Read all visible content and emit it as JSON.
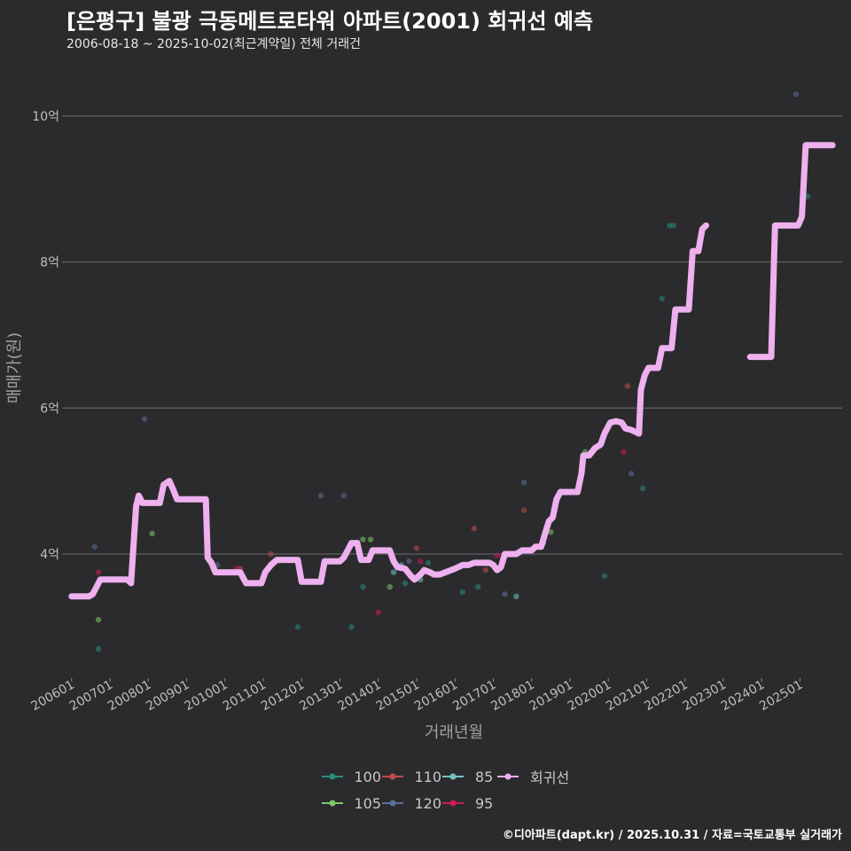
{
  "header": {
    "title": "[은평구] 불광 극동메트로타워 아파트(2001) 회귀선 예측",
    "subtitle": "2006-08-18 ~ 2025-10-02(최근계약일) 전체 거래건"
  },
  "footer": {
    "credit": "©디아파트(dapt.kr) / 2025.10.31 / 자료=국토교통부 실거래가"
  },
  "chart_data": {
    "type": "scatter",
    "title": "[은평구] 불광 극동메트로타워 아파트(2001) 회귀선 예측",
    "xlabel": "거래년월",
    "ylabel": "매매가(원)",
    "x_ticks": [
      "200601",
      "200701",
      "200801",
      "200901",
      "201001",
      "201101",
      "201201",
      "201301",
      "201401",
      "201501",
      "201601",
      "201701",
      "201801",
      "201901",
      "202001",
      "202101",
      "202201",
      "202301",
      "202401",
      "202501"
    ],
    "y_ticks": [
      {
        "value": 4,
        "label": "4억"
      },
      {
        "value": 6,
        "label": "6억"
      },
      {
        "value": 8,
        "label": "8억"
      },
      {
        "value": 10,
        "label": "10억"
      }
    ],
    "xlim": [
      2005.75,
      2026.1
    ],
    "ylim": [
      2.3,
      10.8
    ],
    "grid": true,
    "legend_position": "bottom",
    "colors": {
      "100": "#2a8d7e",
      "105": "#7ec96c",
      "110": "#c04c4c",
      "120": "#5b6f99",
      "85": "#72c4c4",
      "95": "#cc1a57",
      "회귀선": "#eeb0ee"
    },
    "legend": [
      "100",
      "105",
      "110",
      "120",
      "85",
      "95",
      "회귀선"
    ],
    "series": [
      {
        "name": "100",
        "points": [
          [
            2006.7,
            2.7
          ],
          [
            2011.9,
            3.0
          ],
          [
            2013.3,
            3.0
          ],
          [
            2013.6,
            3.55
          ],
          [
            2014.7,
            3.6
          ],
          [
            2015.3,
            3.88
          ],
          [
            2016.2,
            3.48
          ],
          [
            2016.6,
            3.55
          ],
          [
            2019.9,
            3.7
          ],
          [
            2020.9,
            4.9
          ],
          [
            2021.4,
            7.5
          ],
          [
            2021.6,
            8.5
          ],
          [
            2021.7,
            8.5
          ],
          [
            2025.2,
            8.9
          ]
        ]
      },
      {
        "name": "105",
        "points": [
          [
            2006.7,
            3.1
          ],
          [
            2008.1,
            4.28
          ],
          [
            2013.6,
            4.2
          ],
          [
            2013.8,
            4.2
          ],
          [
            2014.3,
            3.55
          ],
          [
            2018.5,
            4.3
          ],
          [
            2019.4,
            5.4
          ]
        ]
      },
      {
        "name": "110",
        "points": [
          [
            2010.4,
            3.8
          ],
          [
            2011.2,
            4.0
          ],
          [
            2015.0,
            4.08
          ],
          [
            2016.5,
            4.35
          ],
          [
            2016.8,
            3.78
          ],
          [
            2017.8,
            4.6
          ],
          [
            2020.5,
            6.3
          ]
        ]
      },
      {
        "name": "120",
        "points": [
          [
            2006.6,
            4.1
          ],
          [
            2007.9,
            5.85
          ],
          [
            2009.8,
            3.85
          ],
          [
            2012.5,
            4.8
          ],
          [
            2013.1,
            4.8
          ],
          [
            2014.8,
            3.9
          ],
          [
            2017.3,
            3.45
          ],
          [
            2017.8,
            4.98
          ],
          [
            2020.6,
            5.1
          ],
          [
            2024.9,
            10.3
          ]
        ]
      },
      {
        "name": "85",
        "points": [
          [
            2014.4,
            3.75
          ],
          [
            2014.6,
            3.85
          ],
          [
            2015.1,
            3.65
          ],
          [
            2017.6,
            3.42
          ],
          [
            2018.3,
            4.15
          ]
        ]
      },
      {
        "name": "95",
        "points": [
          [
            2006.7,
            3.75
          ],
          [
            2010.3,
            3.8
          ],
          [
            2014.0,
            3.2
          ],
          [
            2015.1,
            3.9
          ],
          [
            2017.1,
            3.98
          ],
          [
            2020.4,
            5.4
          ]
        ]
      }
    ],
    "regression": {
      "name": "회귀선",
      "segments": [
        [
          [
            2006.0,
            3.42
          ],
          [
            2006.45,
            3.42
          ],
          [
            2006.55,
            3.45
          ],
          [
            2006.65,
            3.55
          ],
          [
            2006.75,
            3.65
          ],
          [
            2007.45,
            3.65
          ],
          [
            2007.55,
            3.6
          ],
          [
            2007.68,
            4.65
          ],
          [
            2007.75,
            4.8
          ],
          [
            2007.85,
            4.7
          ],
          [
            2008.3,
            4.7
          ],
          [
            2008.4,
            4.95
          ],
          [
            2008.55,
            5.0
          ],
          [
            2008.65,
            4.88
          ],
          [
            2008.75,
            4.75
          ],
          [
            2009.5,
            4.75
          ],
          [
            2009.55,
            3.95
          ],
          [
            2009.65,
            3.88
          ],
          [
            2009.75,
            3.75
          ],
          [
            2010.4,
            3.75
          ],
          [
            2010.45,
            3.7
          ],
          [
            2010.55,
            3.6
          ],
          [
            2010.95,
            3.6
          ],
          [
            2011.05,
            3.75
          ],
          [
            2011.2,
            3.85
          ],
          [
            2011.35,
            3.92
          ],
          [
            2011.9,
            3.92
          ],
          [
            2012.0,
            3.62
          ],
          [
            2012.5,
            3.62
          ],
          [
            2012.6,
            3.9
          ],
          [
            2013.0,
            3.9
          ],
          [
            2013.1,
            3.95
          ],
          [
            2013.2,
            4.05
          ],
          [
            2013.3,
            4.15
          ],
          [
            2013.45,
            4.15
          ],
          [
            2013.55,
            3.92
          ],
          [
            2013.75,
            3.92
          ],
          [
            2013.85,
            4.05
          ],
          [
            2014.3,
            4.05
          ],
          [
            2014.4,
            3.9
          ],
          [
            2014.5,
            3.82
          ],
          [
            2014.7,
            3.8
          ],
          [
            2014.85,
            3.7
          ],
          [
            2014.95,
            3.65
          ],
          [
            2015.1,
            3.72
          ],
          [
            2015.2,
            3.78
          ],
          [
            2015.35,
            3.75
          ],
          [
            2015.45,
            3.72
          ],
          [
            2015.6,
            3.72
          ],
          [
            2015.75,
            3.75
          ],
          [
            2016.0,
            3.8
          ],
          [
            2016.2,
            3.85
          ],
          [
            2016.35,
            3.85
          ],
          [
            2016.5,
            3.88
          ],
          [
            2016.9,
            3.88
          ],
          [
            2017.0,
            3.85
          ],
          [
            2017.1,
            3.78
          ],
          [
            2017.2,
            3.82
          ],
          [
            2017.3,
            4.0
          ],
          [
            2017.6,
            4.0
          ],
          [
            2017.75,
            4.05
          ],
          [
            2018.0,
            4.05
          ],
          [
            2018.1,
            4.1
          ],
          [
            2018.25,
            4.1
          ],
          [
            2018.35,
            4.28
          ],
          [
            2018.45,
            4.45
          ],
          [
            2018.55,
            4.5
          ],
          [
            2018.65,
            4.75
          ],
          [
            2018.75,
            4.85
          ],
          [
            2019.2,
            4.85
          ],
          [
            2019.3,
            5.1
          ],
          [
            2019.35,
            5.35
          ],
          [
            2019.5,
            5.35
          ],
          [
            2019.65,
            5.45
          ],
          [
            2019.8,
            5.5
          ],
          [
            2019.9,
            5.65
          ],
          [
            2020.05,
            5.8
          ],
          [
            2020.2,
            5.82
          ],
          [
            2020.35,
            5.8
          ],
          [
            2020.45,
            5.72
          ],
          [
            2020.6,
            5.7
          ],
          [
            2020.8,
            5.65
          ],
          [
            2020.85,
            6.25
          ],
          [
            2020.95,
            6.45
          ],
          [
            2021.05,
            6.55
          ],
          [
            2021.3,
            6.55
          ],
          [
            2021.4,
            6.82
          ],
          [
            2021.65,
            6.82
          ],
          [
            2021.75,
            7.35
          ],
          [
            2022.1,
            7.35
          ],
          [
            2022.2,
            8.15
          ],
          [
            2022.35,
            8.15
          ],
          [
            2022.45,
            8.45
          ],
          [
            2022.55,
            8.5
          ]
        ],
        [
          [
            2023.7,
            6.7
          ],
          [
            2024.25,
            6.7
          ],
          [
            2024.35,
            8.5
          ],
          [
            2024.95,
            8.5
          ],
          [
            2025.05,
            8.62
          ],
          [
            2025.15,
            9.6
          ],
          [
            2025.85,
            9.6
          ]
        ]
      ]
    }
  }
}
